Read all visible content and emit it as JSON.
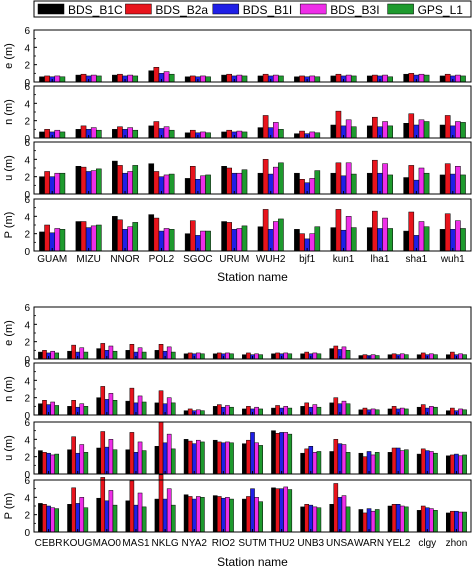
{
  "figure": {
    "colors": {
      "BDS_B1C": "#000000",
      "BDS_B2a": "#e8141c",
      "BDS_B1I": "#1f1fe6",
      "BDS_B3I": "#ee2ee8",
      "GPS_L1": "#1e9a2e"
    }
  },
  "chart_data": [
    {
      "type": "bar",
      "panel": "top",
      "xlabel": "Station name",
      "legend": [
        "BDS_B1C",
        "BDS_B2a",
        "BDS_B1I",
        "BDS_B3I",
        "GPS_L1"
      ],
      "legend_placement": "top",
      "categories": [
        "GUAM",
        "MIZU",
        "NNOR",
        "POL2",
        "SGOC",
        "URUM",
        "WUH2",
        "bjf1",
        "kun1",
        "lha1",
        "sha1",
        "wuh1"
      ],
      "subplots": [
        {
          "ylabel": "e (m)",
          "ylim": [
            0,
            6
          ],
          "yticks": [
            "0",
            "2",
            "4",
            "6"
          ],
          "series": [
            {
              "name": "BDS_B1C",
              "values": [
                0.6,
                0.8,
                0.8,
                1.3,
                0.6,
                0.8,
                0.7,
                0.6,
                0.7,
                0.7,
                0.9,
                0.7
              ]
            },
            {
              "name": "BDS_B2a",
              "values": [
                0.7,
                0.9,
                0.9,
                1.7,
                0.7,
                0.9,
                0.9,
                0.7,
                0.9,
                0.8,
                1.0,
                0.9
              ]
            },
            {
              "name": "BDS_B1I",
              "values": [
                0.6,
                0.7,
                0.7,
                1.0,
                0.6,
                0.7,
                0.7,
                0.6,
                0.7,
                0.7,
                0.8,
                0.7
              ]
            },
            {
              "name": "BDS_B3I",
              "values": [
                0.7,
                0.8,
                0.8,
                1.2,
                0.7,
                0.8,
                0.8,
                0.7,
                0.8,
                0.8,
                0.9,
                0.8
              ]
            },
            {
              "name": "GPS_L1",
              "values": [
                0.6,
                0.7,
                0.7,
                0.9,
                0.6,
                0.7,
                0.7,
                0.6,
                0.7,
                0.6,
                0.8,
                0.7
              ]
            }
          ]
        },
        {
          "ylabel": "n (m)",
          "ylim": [
            0,
            6
          ],
          "yticks": [
            "0",
            "2",
            "4",
            "6"
          ],
          "series": [
            {
              "name": "BDS_B1C",
              "values": [
                0.7,
                1.0,
                1.0,
                1.4,
                0.6,
                0.7,
                1.2,
                0.5,
                1.5,
                1.4,
                1.7,
                1.5
              ]
            },
            {
              "name": "BDS_B2a",
              "values": [
                1.0,
                1.4,
                1.3,
                1.9,
                0.9,
                0.9,
                2.6,
                0.8,
                3.1,
                2.4,
                2.8,
                2.6
              ]
            },
            {
              "name": "BDS_B1I",
              "values": [
                0.7,
                1.0,
                1.0,
                1.1,
                0.6,
                0.7,
                1.2,
                0.5,
                1.4,
                1.3,
                1.5,
                1.4
              ]
            },
            {
              "name": "BDS_B3I",
              "values": [
                0.9,
                1.2,
                1.2,
                1.3,
                0.7,
                0.8,
                1.8,
                0.7,
                2.1,
                1.9,
                2.1,
                1.9
              ]
            },
            {
              "name": "GPS_L1",
              "values": [
                0.7,
                0.9,
                0.9,
                0.9,
                0.6,
                0.7,
                1.0,
                0.6,
                1.3,
                1.4,
                1.9,
                1.8
              ]
            }
          ]
        },
        {
          "ylabel": "u (m)",
          "ylim": [
            0,
            6
          ],
          "yticks": [
            "0",
            "2",
            "4",
            "6"
          ],
          "series": [
            {
              "name": "BDS_B1C",
              "values": [
                2.0,
                3.2,
                3.8,
                3.5,
                1.8,
                3.2,
                2.4,
                2.4,
                2.4,
                2.4,
                1.9,
                2.2
              ]
            },
            {
              "name": "BDS_B2a",
              "values": [
                2.6,
                3.1,
                3.3,
                2.6,
                3.2,
                3.0,
                4.0,
                1.7,
                3.6,
                3.9,
                3.3,
                3.5
              ]
            },
            {
              "name": "BDS_B1I",
              "values": [
                2.0,
                2.6,
                2.4,
                2.0,
                1.7,
                2.4,
                2.3,
                1.3,
                2.1,
                2.4,
                1.6,
                2.3
              ]
            },
            {
              "name": "BDS_B3I",
              "values": [
                2.4,
                2.7,
                2.6,
                2.2,
                2.1,
                2.4,
                3.1,
                1.8,
                3.6,
                3.5,
                3.0,
                3.2
              ]
            },
            {
              "name": "GPS_L1",
              "values": [
                2.4,
                2.9,
                3.3,
                2.3,
                2.2,
                2.8,
                3.6,
                2.7,
                2.3,
                2.2,
                2.4,
                2.2
              ]
            }
          ]
        },
        {
          "ylabel": "P (m)",
          "ylim": [
            0,
            6
          ],
          "yticks": [
            "0",
            "2",
            "4",
            "6"
          ],
          "series": [
            {
              "name": "BDS_B1C",
              "values": [
                2.2,
                3.4,
                4.0,
                4.2,
                2.0,
                3.4,
                2.8,
                2.5,
                2.7,
                2.7,
                2.3,
                2.5
              ]
            },
            {
              "name": "BDS_B2a",
              "values": [
                3.0,
                3.4,
                3.6,
                3.8,
                3.5,
                3.3,
                4.8,
                2.0,
                4.8,
                4.6,
                4.5,
                4.3
              ]
            },
            {
              "name": "BDS_B1I",
              "values": [
                2.1,
                2.7,
                2.5,
                2.3,
                1.8,
                2.5,
                2.5,
                1.4,
                2.4,
                2.6,
                1.8,
                2.5
              ]
            },
            {
              "name": "BDS_B3I",
              "values": [
                2.6,
                2.9,
                2.8,
                2.6,
                2.3,
                2.6,
                3.4,
                2.0,
                4.0,
                3.8,
                3.4,
                3.5
              ]
            },
            {
              "name": "GPS_L1",
              "values": [
                2.5,
                3.0,
                3.3,
                2.5,
                2.3,
                2.9,
                3.7,
                2.8,
                2.7,
                2.6,
                2.8,
                2.6
              ]
            }
          ]
        }
      ]
    },
    {
      "type": "bar",
      "panel": "bottom",
      "xlabel": "Station name",
      "categories": [
        "CEBR",
        "KOUG",
        "MAO0",
        "MAS1",
        "NKLG",
        "NYA2",
        "RIO2",
        "SUTM",
        "THU2",
        "UNB3",
        "UNSA",
        "WARN",
        "YEL2",
        "clgy",
        "zhon"
      ],
      "subplots": [
        {
          "ylabel": "e (m)",
          "ylim": [
            0,
            6
          ],
          "yticks": [
            "0",
            "2",
            "4",
            "6"
          ],
          "series": [
            {
              "name": "BDS_B1C",
              "values": [
                0.8,
                0.9,
                1.2,
                1.0,
                1.0,
                0.6,
                0.6,
                0.5,
                0.6,
                0.6,
                1.2,
                0.4,
                0.5,
                0.5,
                0.5
              ]
            },
            {
              "name": "BDS_B2a",
              "values": [
                1.0,
                1.6,
                1.8,
                1.7,
                1.7,
                0.7,
                0.7,
                0.7,
                0.7,
                0.8,
                1.5,
                0.5,
                0.6,
                0.7,
                0.8
              ]
            },
            {
              "name": "BDS_B1I",
              "values": [
                0.7,
                0.8,
                1.0,
                0.8,
                0.9,
                0.6,
                0.6,
                0.5,
                0.6,
                0.6,
                1.1,
                0.4,
                0.5,
                0.5,
                0.5
              ]
            },
            {
              "name": "BDS_B3I",
              "values": [
                0.9,
                1.3,
                1.5,
                1.3,
                1.4,
                0.7,
                0.7,
                0.6,
                0.7,
                0.7,
                1.4,
                0.5,
                0.6,
                0.6,
                0.6
              ]
            },
            {
              "name": "GPS_L1",
              "values": [
                0.7,
                0.8,
                0.9,
                0.8,
                0.8,
                0.6,
                0.6,
                0.5,
                0.6,
                0.6,
                1.0,
                0.4,
                0.5,
                0.5,
                0.5
              ]
            }
          ]
        },
        {
          "ylabel": "n (m)",
          "ylim": [
            0,
            6
          ],
          "yticks": [
            "0",
            "2",
            "4",
            "6"
          ],
          "series": [
            {
              "name": "BDS_B1C",
              "values": [
                1.3,
                1.0,
                2.0,
                1.6,
                1.4,
                0.5,
                1.0,
                0.7,
                0.8,
                1.0,
                1.4,
                0.6,
                0.7,
                0.9,
                0.5
              ]
            },
            {
              "name": "BDS_B2a",
              "values": [
                1.7,
                1.7,
                3.3,
                3.1,
                2.8,
                0.7,
                1.2,
                1.0,
                1.1,
                1.4,
                2.0,
                0.8,
                1.0,
                1.2,
                0.8
              ]
            },
            {
              "name": "BDS_B1I",
              "values": [
                1.2,
                0.9,
                1.8,
                1.4,
                1.3,
                0.5,
                0.9,
                0.7,
                0.8,
                0.9,
                1.3,
                0.6,
                0.7,
                0.8,
                0.5
              ]
            },
            {
              "name": "BDS_B3I",
              "values": [
                1.5,
                1.3,
                2.5,
                2.2,
                2.0,
                0.6,
                1.1,
                0.9,
                1.0,
                1.2,
                1.6,
                0.7,
                0.8,
                1.0,
                0.7
              ]
            },
            {
              "name": "GPS_L1",
              "values": [
                1.1,
                1.0,
                1.7,
                1.5,
                1.4,
                0.5,
                0.9,
                0.7,
                0.8,
                0.9,
                1.3,
                0.6,
                0.7,
                0.9,
                0.6
              ]
            }
          ]
        },
        {
          "ylabel": "u (m)",
          "ylim": [
            0,
            6
          ],
          "yticks": [
            "0",
            "2",
            "4",
            "6"
          ],
          "series": [
            {
              "name": "BDS_B1C",
              "values": [
                2.7,
                2.8,
                3.0,
                2.8,
                3.2,
                4.0,
                3.9,
                3.5,
                5.0,
                2.4,
                2.6,
                2.4,
                2.5,
                2.3,
                2.1
              ]
            },
            {
              "name": "BDS_B2a",
              "values": [
                2.5,
                4.3,
                4.9,
                4.8,
                6.0,
                3.8,
                3.7,
                3.9,
                4.7,
                2.9,
                4.0,
                2.0,
                3.0,
                2.9,
                2.2
              ]
            },
            {
              "name": "BDS_B1I",
              "values": [
                2.4,
                2.4,
                3.1,
                2.5,
                3.6,
                3.5,
                3.6,
                4.8,
                4.8,
                3.2,
                3.5,
                2.6,
                3.0,
                2.7,
                2.3
              ]
            },
            {
              "name": "BDS_B3I",
              "values": [
                2.2,
                3.4,
                4.0,
                3.7,
                4.6,
                3.9,
                3.7,
                3.6,
                4.8,
                2.5,
                3.4,
                2.2,
                2.7,
                2.6,
                2.1
              ]
            },
            {
              "name": "GPS_L1",
              "values": [
                2.3,
                2.5,
                2.8,
                2.7,
                2.9,
                3.7,
                3.6,
                3.3,
                4.6,
                2.6,
                2.5,
                2.5,
                2.8,
                2.4,
                2.2
              ]
            }
          ]
        },
        {
          "ylabel": "P (m)",
          "ylim": [
            0,
            6
          ],
          "yticks": [
            "0",
            "2",
            "4",
            "6"
          ],
          "series": [
            {
              "name": "BDS_B1C",
              "values": [
                3.3,
                3.2,
                3.9,
                3.6,
                3.8,
                4.3,
                4.2,
                3.8,
                5.1,
                2.9,
                3.2,
                2.6,
                3.0,
                2.5,
                2.2
              ]
            },
            {
              "name": "BDS_B2a",
              "values": [
                3.2,
                5.1,
                6.3,
                5.9,
                6.6,
                4.1,
                4.1,
                4.1,
                5.0,
                3.2,
                5.6,
                2.2,
                3.2,
                3.0,
                2.4
              ]
            },
            {
              "name": "BDS_B1I",
              "values": [
                3.0,
                3.3,
                3.6,
                3.1,
                3.8,
                3.8,
                3.9,
                5.0,
                5.0,
                3.1,
                4.0,
                2.7,
                3.2,
                2.8,
                2.4
              ]
            },
            {
              "name": "BDS_B3I",
              "values": [
                2.8,
                4.0,
                4.8,
                4.5,
                5.0,
                4.1,
                4.0,
                4.0,
                5.2,
                2.9,
                4.2,
                2.4,
                3.0,
                2.7,
                2.3
              ]
            },
            {
              "name": "GPS_L1",
              "values": [
                2.7,
                2.8,
                3.1,
                2.9,
                3.1,
                4.0,
                3.8,
                3.5,
                4.9,
                2.8,
                2.9,
                2.6,
                2.9,
                2.5,
                2.3
              ]
            }
          ]
        }
      ]
    }
  ]
}
